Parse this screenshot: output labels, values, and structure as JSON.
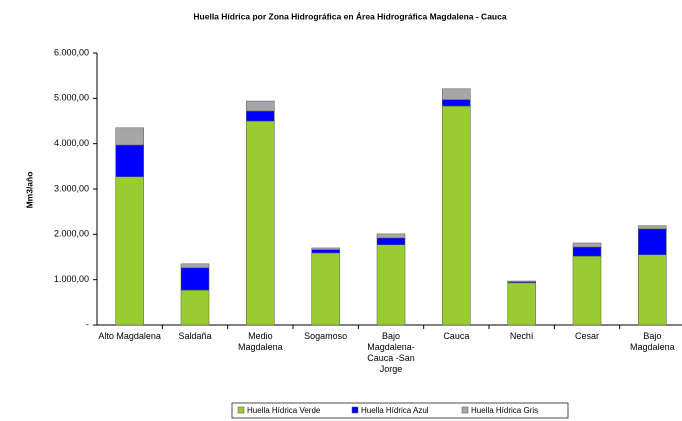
{
  "chart_data": {
    "type": "stacked_bar",
    "title": "Huella Hídrica por Zona Hidrográfica en Área Hidrográfica Magdalena - Cauca",
    "y_label": "Mm3/año",
    "categories": [
      "Alto Magdalena",
      "Saldaña",
      "Medio Magdalena",
      "Sogamoso",
      "Bajo Magdalena-Cauca -San Jorge",
      "Cauca",
      "Nechí",
      "Cesar",
      "Bajo Magdalena"
    ],
    "series": [
      {
        "name": "Huella Hídrica Verde",
        "color": "#99cc33",
        "values": [
          3270,
          770,
          4500,
          1590,
          1770,
          4830,
          930,
          1520,
          1550
        ]
      },
      {
        "name": "Huella Hídrica Azul",
        "color": "#0000ff",
        "values": [
          700,
          490,
          220,
          70,
          150,
          140,
          20,
          200,
          570
        ]
      },
      {
        "name": "Huella Hídrica Gris",
        "color": "#a6a6a6",
        "values": [
          380,
          90,
          220,
          40,
          90,
          240,
          20,
          90,
          70
        ]
      }
    ],
    "ylim": [
      0,
      6000
    ],
    "yticks": [
      {
        "value": 0,
        "label": "-"
      },
      {
        "value": 1000,
        "label": "1.000,00"
      },
      {
        "value": 2000,
        "label": "2.000,00"
      },
      {
        "value": 3000,
        "label": "3.000,00"
      },
      {
        "value": 4000,
        "label": "4.000,00"
      },
      {
        "value": 5000,
        "label": "5.000,00"
      },
      {
        "value": 6000,
        "label": "6.000,00"
      }
    ],
    "legend": "bottom"
  }
}
